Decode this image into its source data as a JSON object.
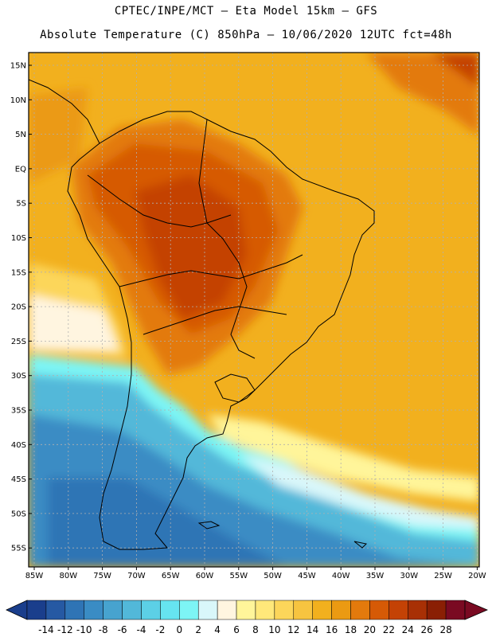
{
  "title_line1": "CPTEC/INPE/MCT –  Eta Model 15km – GFS",
  "title_line2": "Absolute Temperature (C) 850hPa – 10/06/2020 12UTC fct=48h",
  "lat_labels": [
    "15N",
    "10N",
    "5N",
    "EQ",
    "5S",
    "10S",
    "15S",
    "20S",
    "25S",
    "30S",
    "35S",
    "40S",
    "45S",
    "50S",
    "55S"
  ],
  "lon_labels": [
    "85W",
    "80W",
    "75W",
    "70W",
    "65W",
    "60W",
    "55W",
    "50W",
    "45W",
    "40W",
    "35W",
    "30W",
    "25W",
    "20W"
  ],
  "colorbar": {
    "values": [
      "-14",
      "-12",
      "-10",
      "-8",
      "-6",
      "-4",
      "-2",
      "0",
      "2",
      "4",
      "6",
      "8",
      "10",
      "12",
      "14",
      "16",
      "18",
      "20",
      "22",
      "24",
      "26",
      "28"
    ],
    "colors": [
      "#1a3e8c",
      "#2659a3",
      "#2f74b5",
      "#3a8cc4",
      "#47a3cf",
      "#52b8d9",
      "#5cd0e6",
      "#66e4f0",
      "#7df5f5",
      "#d9f7fa",
      "#fff5e0",
      "#fff59a",
      "#ffe87a",
      "#fcd65a",
      "#f7c440",
      "#f2b01e",
      "#eb9a12",
      "#e37a0c",
      "#d65a06",
      "#c44205",
      "#a83005",
      "#8a1f04",
      "#7a0a22"
    ]
  },
  "colors": {
    "ocean_warm": "#f2b01e",
    "land_hot": "#d6620c",
    "cold_south": "#3a8cc4",
    "coast_line": "#000000"
  }
}
